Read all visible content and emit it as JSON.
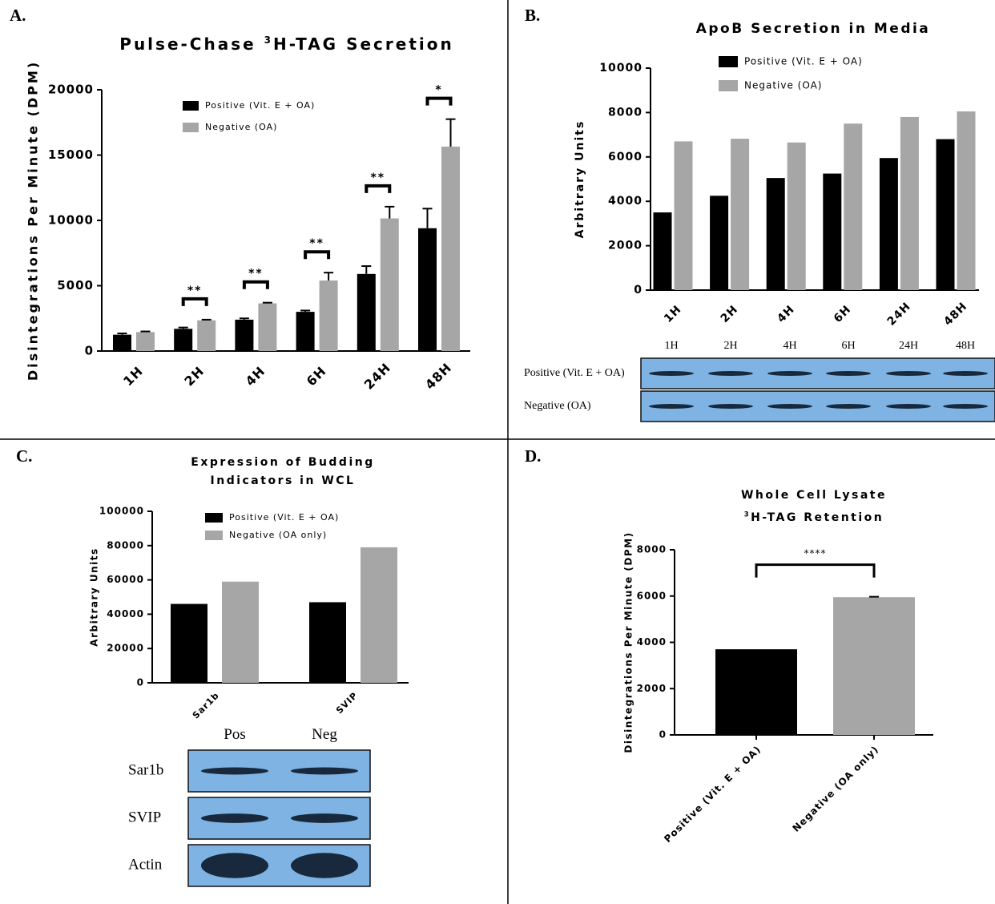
{
  "chart_data": [
    {
      "type": "bar",
      "panel_label": "A.",
      "title_lines": [
        [
          "Pulse-Chase ",
          {
            "sup": "3"
          },
          "H-TAG Secretion"
        ]
      ],
      "y_label": "Disintegrations Per Minute (DPM)",
      "categories": [
        "1H",
        "2H",
        "4H",
        "6H",
        "24H",
        "48H"
      ],
      "series": [
        {
          "name": "Positive (Vit. E + OA)",
          "color": "#000000",
          "values": [
            1250,
            1700,
            2400,
            3000,
            5900,
            9400
          ],
          "errors": [
            100,
            100,
            100,
            100,
            600,
            1500
          ]
        },
        {
          "name": "Negative (OA)",
          "color": "#a6a6a6",
          "values": [
            1450,
            2350,
            3650,
            5400,
            10150,
            15650
          ],
          "errors": [
            50,
            50,
            50,
            600,
            900,
            2100
          ]
        }
      ],
      "significance": [
        null,
        "**",
        "**",
        "**",
        "**",
        "*"
      ],
      "ylim": [
        0,
        20000
      ],
      "yticks": [
        0,
        5000,
        10000,
        15000,
        20000
      ]
    },
    {
      "type": "bar",
      "panel_label": "B.",
      "title_lines": [
        [
          "ApoB Secretion in Media"
        ]
      ],
      "y_label": "Arbitrary Units",
      "categories": [
        "1H",
        "2H",
        "4H",
        "6H",
        "24H",
        "48H"
      ],
      "series": [
        {
          "name": "Positive (Vit. E + OA)",
          "color": "#000000",
          "values": [
            3500,
            4250,
            5050,
            5250,
            5950,
            6800
          ]
        },
        {
          "name": "Negative (OA)",
          "color": "#a6a6a6",
          "values": [
            6700,
            6820,
            6650,
            7500,
            7800,
            8050
          ]
        }
      ],
      "ylim": [
        0,
        10000
      ],
      "yticks": [
        0,
        2000,
        4000,
        6000,
        8000,
        10000
      ],
      "blot": {
        "lanes": [
          "1H",
          "2H",
          "4H",
          "6H",
          "24H",
          "48H"
        ],
        "rows": [
          "Positive (Vit. E + OA)",
          "Negative (OA)"
        ]
      }
    },
    {
      "type": "bar",
      "panel_label": "C.",
      "title_lines": [
        [
          "Expression of Budding"
        ],
        [
          "Indicators in WCL"
        ]
      ],
      "y_label": "Arbitrary Units",
      "categories": [
        "Sar1b",
        "SVIP"
      ],
      "series": [
        {
          "name": "Positive (Vit. E + OA)",
          "color": "#000000",
          "values": [
            46000,
            47000
          ]
        },
        {
          "name": "Negative (OA only)",
          "color": "#a6a6a6",
          "values": [
            59000,
            79000
          ]
        }
      ],
      "ylim": [
        0,
        100000
      ],
      "yticks": [
        0,
        20000,
        40000,
        60000,
        80000,
        100000
      ],
      "blot": {
        "lanes": [
          "Pos",
          "Neg"
        ],
        "rows": [
          "Sar1b",
          "SVIP",
          "Actin"
        ]
      }
    },
    {
      "type": "bar",
      "panel_label": "D.",
      "title_lines": [
        [
          "Whole Cell Lysate"
        ],
        [
          {
            "sup": "3"
          },
          "H-TAG Retention"
        ]
      ],
      "y_label": "Disintegrations Per Minute (DPM)",
      "categories": [
        "Positive (Vit. E + OA)",
        "Negative (OA only)"
      ],
      "values": [
        3700,
        5950
      ],
      "errors": [
        null,
        20
      ],
      "colors": [
        "#000000",
        "#a6a6a6"
      ],
      "significance": "****",
      "ylim": [
        0,
        8000
      ],
      "yticks": [
        0,
        2000,
        4000,
        6000,
        8000
      ]
    }
  ]
}
